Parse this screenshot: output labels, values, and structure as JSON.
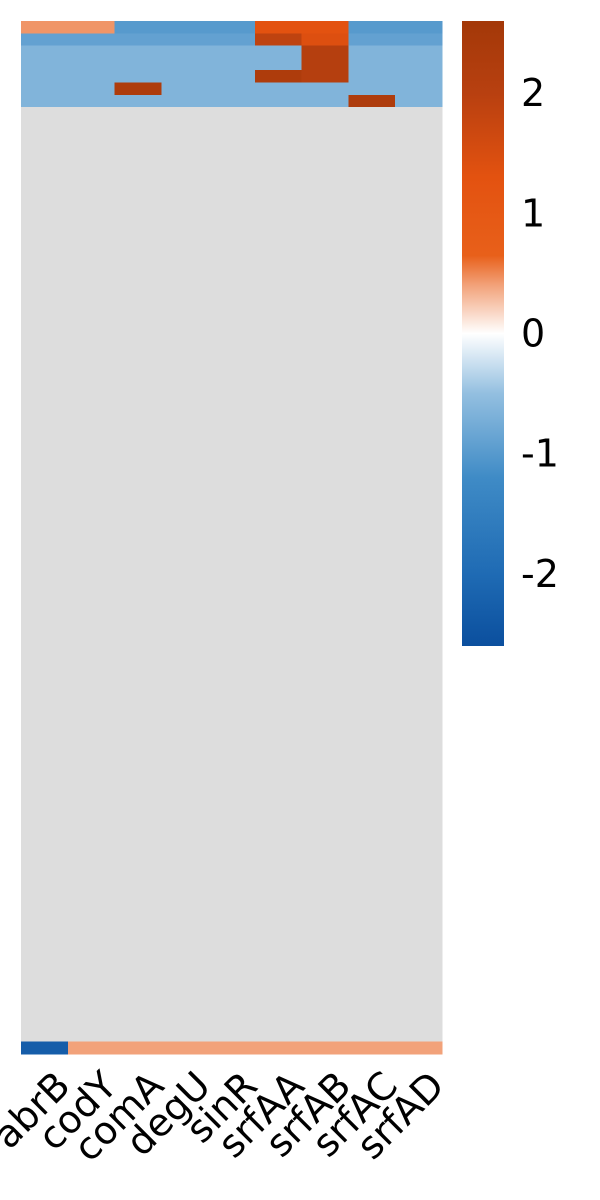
{
  "chart_data": {
    "type": "heatmap",
    "title": "",
    "xlabel": "",
    "ylabel": "",
    "columns": [
      "abrB",
      "codY",
      "comA",
      "degU",
      "sinR",
      "srfAA",
      "srfAB",
      "srfAC",
      "srfAD"
    ],
    "colorbar": {
      "min": -2.6,
      "max": 2.6,
      "ticks": [
        2,
        1,
        0,
        -1,
        -2
      ],
      "tick_labels": [
        "2",
        "1",
        "0",
        "-1",
        "-2"
      ],
      "stops": [
        {
          "value": -2.6,
          "color": "#0b4f9e"
        },
        {
          "value": -2.0,
          "color": "#1f6bb4"
        },
        {
          "value": -1.2,
          "color": "#3f8bc6"
        },
        {
          "value": -0.5,
          "color": "#93bfe0"
        },
        {
          "value": 0.0,
          "color": "#ffffff"
        },
        {
          "value": 0.4,
          "color": "#f2a27a"
        },
        {
          "value": 0.65,
          "color": "#e8601a"
        },
        {
          "value": 1.3,
          "color": "#e35210"
        },
        {
          "value": 2.0,
          "color": "#b84010"
        },
        {
          "value": 2.6,
          "color": "#a33808"
        }
      ]
    },
    "missing_color": "#dddddd",
    "background_value": -0.65,
    "rows": 84,
    "missing_rows_from": 7,
    "features": [
      {
        "row_from": 0,
        "row_to": 1,
        "col_from": 0,
        "col_to": 9,
        "value": -1.0
      },
      {
        "row_from": 0,
        "row_to": 1,
        "col_from": 0,
        "col_to": 2,
        "value": 0.45
      },
      {
        "row_from": 1,
        "row_to": 2,
        "col_from": 0,
        "col_to": 9,
        "value": -0.9
      },
      {
        "row_from": 0,
        "row_to": 1,
        "col_from": 5,
        "col_to": 7,
        "value": 1.3
      },
      {
        "row_from": 1,
        "row_to": 2,
        "col_from": 5,
        "col_to": 6,
        "value": 1.9
      },
      {
        "row_from": 1,
        "row_to": 2,
        "col_from": 6,
        "col_to": 7,
        "value": 1.4
      },
      {
        "row_from": 2,
        "row_to": 5,
        "col_from": 6,
        "col_to": 7,
        "value": 2.1
      },
      {
        "row_from": 5,
        "row_to": 6,
        "col_from": 2,
        "col_to": 3,
        "value": 2.3
      },
      {
        "row_from": 4,
        "row_to": 5,
        "col_from": 5,
        "col_to": 6,
        "value": 2.3
      },
      {
        "row_from": 6,
        "row_to": 7,
        "col_from": 7,
        "col_to": 8,
        "value": 2.3
      },
      {
        "row_from": 83,
        "row_to": 84,
        "col_from": 0,
        "col_to": 1,
        "value": -2.3
      },
      {
        "row_from": 83,
        "row_to": 84,
        "col_from": 1,
        "col_to": 9,
        "value": 0.4
      }
    ]
  }
}
